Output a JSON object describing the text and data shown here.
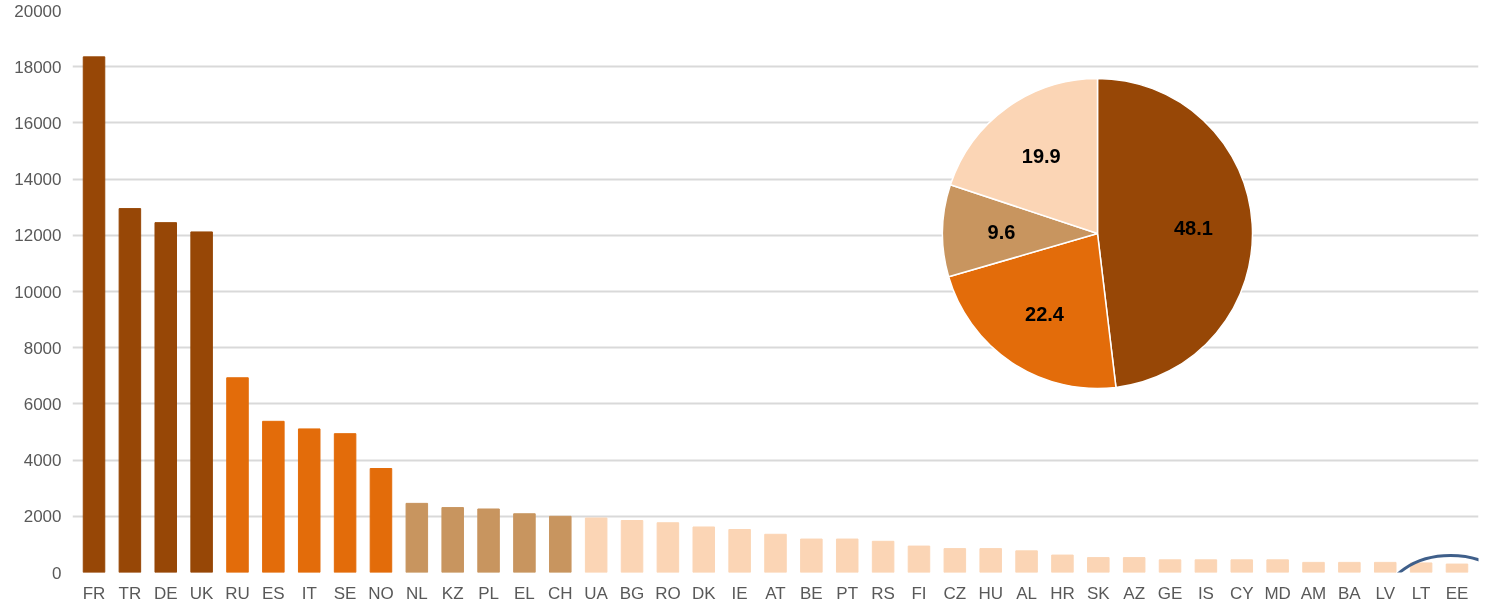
{
  "chart_data": [
    {
      "type": "bar",
      "categories": [
        "FR",
        "TR",
        "DE",
        "UK",
        "RU",
        "ES",
        "IT",
        "SE",
        "NO",
        "NL",
        "KZ",
        "PL",
        "EL",
        "CH",
        "UA",
        "BG",
        "RO",
        "DK",
        "IE",
        "AT",
        "BE",
        "PT",
        "RS",
        "FI",
        "CZ",
        "HU",
        "AL",
        "HR",
        "SK",
        "AZ",
        "GE",
        "IS",
        "CY",
        "MD",
        "AM",
        "BA",
        "LV",
        "LT",
        "EE"
      ],
      "values": [
        18350,
        12950,
        12450,
        12120,
        6930,
        5380,
        5110,
        4940,
        3700,
        2460,
        2310,
        2260,
        2090,
        2000,
        1940,
        1850,
        1770,
        1620,
        1530,
        1360,
        1190,
        1190,
        1110,
        940,
        850,
        850,
        770,
        620,
        530,
        530,
        450,
        450,
        450,
        450,
        360,
        360,
        360,
        340,
        300
      ],
      "colors": [
        "#974706",
        "#974706",
        "#974706",
        "#974706",
        "#e36c0a",
        "#e36c0a",
        "#e36c0a",
        "#e36c0a",
        "#e36c0a",
        "#c8955f",
        "#c8955f",
        "#c8955f",
        "#c8955f",
        "#c8955f",
        "#fbd5b5",
        "#fbd5b5",
        "#fbd5b5",
        "#fbd5b5",
        "#fbd5b5",
        "#fbd5b5",
        "#fbd5b5",
        "#fbd5b5",
        "#fbd5b5",
        "#fbd5b5",
        "#fbd5b5",
        "#fbd5b5",
        "#fbd5b5",
        "#fbd5b5",
        "#fbd5b5",
        "#fbd5b5",
        "#fbd5b5",
        "#fbd5b5",
        "#fbd5b5",
        "#fbd5b5",
        "#fbd5b5",
        "#fbd5b5",
        "#fbd5b5",
        "#fbd5b5",
        "#fbd5b5"
      ],
      "ylim": [
        0,
        20000
      ],
      "yticks": [
        0,
        2000,
        4000,
        6000,
        8000,
        10000,
        12000,
        14000,
        16000,
        18000,
        20000
      ],
      "grid": "y"
    },
    {
      "type": "pie",
      "categories": [
        null,
        null,
        null,
        null
      ],
      "values": [
        48.1,
        22.4,
        9.6,
        19.9
      ],
      "colors": [
        "#974706",
        "#e36c0a",
        "#c8955f",
        "#fbd5b5"
      ],
      "data_labels": true
    }
  ]
}
